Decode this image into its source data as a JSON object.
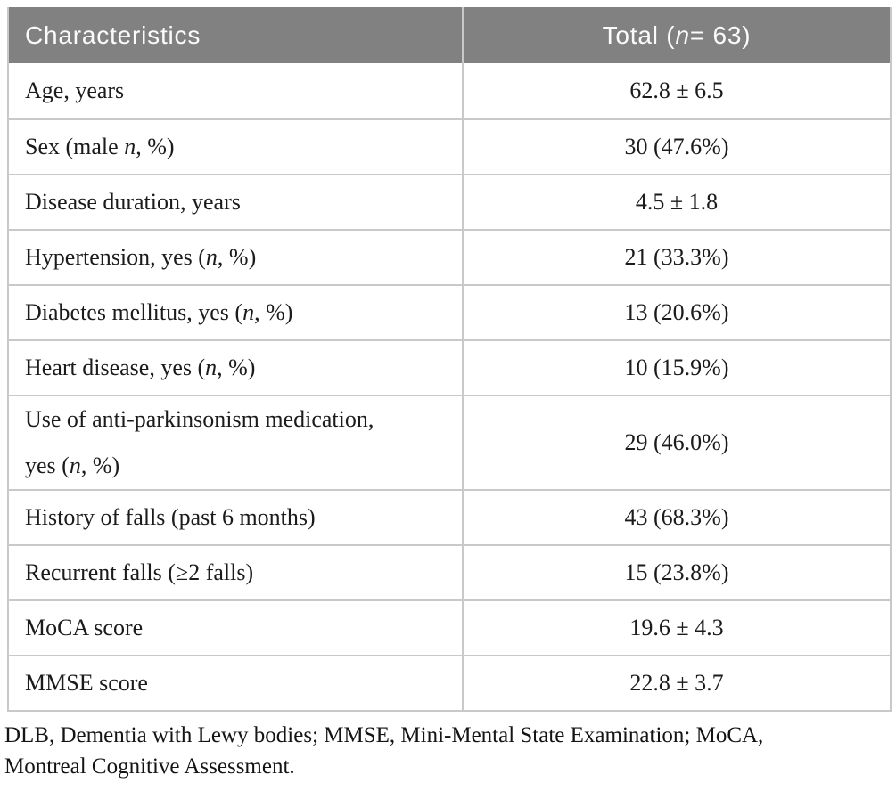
{
  "colors": {
    "header_bg": "#818181",
    "header_text": "#fbfbfb",
    "border": "#c9c9c9",
    "body_text": "#1b1b1b"
  },
  "table": {
    "header": {
      "characteristics": [
        {
          "t": "Characteristics"
        }
      ],
      "total": [
        {
          "t": "Total ("
        },
        {
          "t": "n",
          "i": true
        },
        {
          "t": " = 63)"
        }
      ]
    },
    "rows": [
      {
        "label": [
          {
            "t": "Age, years"
          }
        ],
        "value": "62.8 ± 6.5"
      },
      {
        "label": [
          {
            "t": "Sex (male "
          },
          {
            "t": "n",
            "i": true
          },
          {
            "t": ", %)"
          }
        ],
        "value": "30 (47.6%)"
      },
      {
        "label": [
          {
            "t": "Disease duration, years"
          }
        ],
        "value": "4.5 ± 1.8"
      },
      {
        "label": [
          {
            "t": "Hypertension, yes ("
          },
          {
            "t": "n",
            "i": true
          },
          {
            "t": ", %)"
          }
        ],
        "value": "21 (33.3%)"
      },
      {
        "label": [
          {
            "t": "Diabetes mellitus, yes ("
          },
          {
            "t": "n",
            "i": true
          },
          {
            "t": ", %)"
          }
        ],
        "value": "13 (20.6%)"
      },
      {
        "label": [
          {
            "t": "Heart disease, yes ("
          },
          {
            "t": "n",
            "i": true
          },
          {
            "t": ", %)"
          }
        ],
        "value": "10 (15.9%)"
      },
      {
        "label": [
          {
            "t": "Use of anti-parkinsonism medication,"
          },
          {
            "br": true
          },
          {
            "t": "yes ("
          },
          {
            "t": "n",
            "i": true
          },
          {
            "t": ", %)"
          }
        ],
        "value": "29 (46.0%)",
        "tall": true
      },
      {
        "label": [
          {
            "t": "History of falls (past 6 months)"
          }
        ],
        "value": "43 (68.3%)"
      },
      {
        "label": [
          {
            "t": "Recurrent falls (≥2 falls)"
          }
        ],
        "value": "15 (23.8%)"
      },
      {
        "label": [
          {
            "t": "MoCA score"
          }
        ],
        "value": "19.6 ± 4.3"
      },
      {
        "label": [
          {
            "t": "MMSE score"
          }
        ],
        "value": "22.8 ± 3.7"
      }
    ]
  },
  "footnote": {
    "lines": [
      "DLB, Dementia with Lewy bodies; MMSE, Mini-Mental State Examination; MoCA,",
      "Montreal Cognitive Assessment."
    ]
  }
}
